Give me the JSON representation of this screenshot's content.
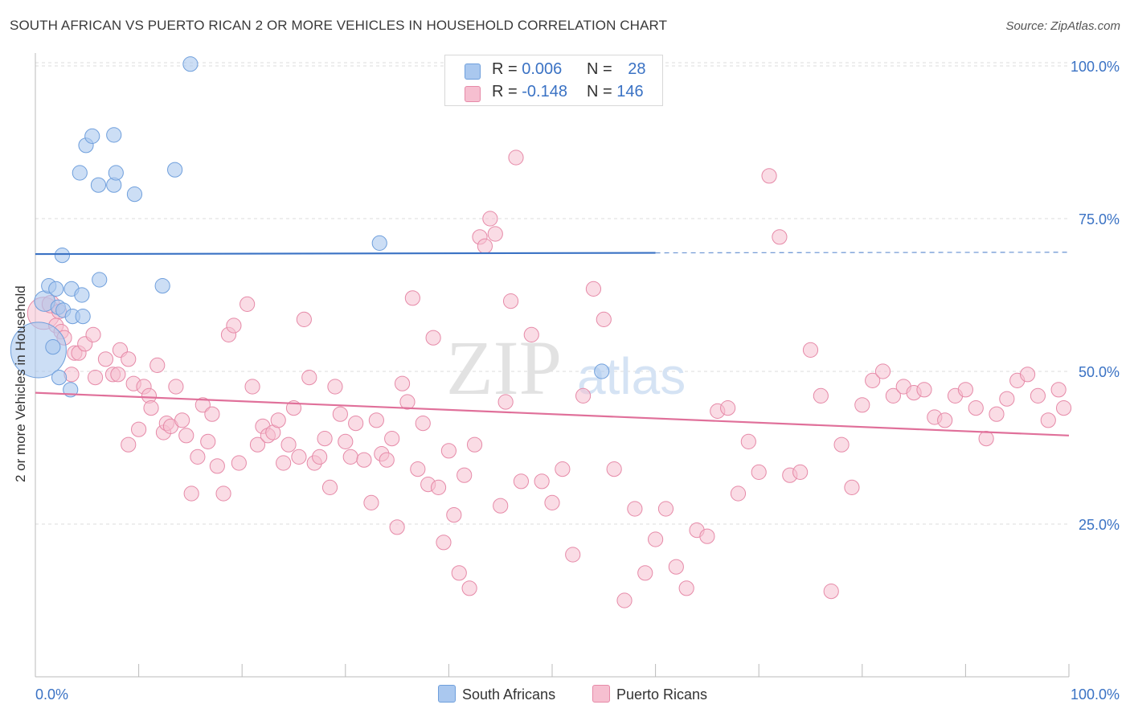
{
  "header": {
    "title": "SOUTH AFRICAN VS PUERTO RICAN 2 OR MORE VEHICLES IN HOUSEHOLD CORRELATION CHART",
    "source": "Source: ZipAtlas.com"
  },
  "legend_top": {
    "rows": [
      {
        "r_label": "R = ",
        "r_value": "0.006",
        "n_label": "N = ",
        "n_value": "28"
      },
      {
        "r_label": "R = ",
        "r_value": "-0.148",
        "n_label": "N = ",
        "n_value": "146"
      }
    ]
  },
  "legend_bottom": {
    "items": [
      {
        "label": "South Africans"
      },
      {
        "label": "Puerto Ricans"
      }
    ]
  },
  "watermark": {
    "zip": "ZIP",
    "atlas": "atlas"
  },
  "colors": {
    "blue_fill": "#aac8ef",
    "blue_stroke": "#6f9fdc",
    "blue_line": "#3a72c4",
    "pink_fill": "#f6bfd0",
    "pink_stroke": "#e68aa8",
    "pink_line": "#e0709a",
    "axis_text": "#3a72c4",
    "grid": "#dddddd"
  },
  "chart_data": {
    "type": "scatter",
    "ylabel": "2 or more Vehicles in Household",
    "xlim": [
      0,
      100
    ],
    "ylim": [
      3,
      105
    ],
    "x_tick_labels": [
      "0.0%",
      "100.0%"
    ],
    "y_ticks": [
      {
        "value": 25,
        "label": "25.0%"
      },
      {
        "value": 50,
        "label": "50.0%"
      },
      {
        "value": 75,
        "label": "75.0%"
      },
      {
        "value": 100,
        "label": "100.0%"
      }
    ],
    "series": [
      {
        "name": "South Africans",
        "R": 0.006,
        "N": 28,
        "trend": {
          "x0": 0,
          "y0": 69.2,
          "x1": 60,
          "y1": 69.4,
          "x_dash_end": 100,
          "y_dash_end": 69.5
        },
        "points": [
          [
            0.3,
            53.5,
            38
          ],
          [
            0.9,
            61.5,
            14
          ],
          [
            1.3,
            64.0,
            10
          ],
          [
            1.7,
            54.0,
            10
          ],
          [
            2.0,
            63.5,
            10
          ],
          [
            2.2,
            60.5,
            10
          ],
          [
            2.6,
            69.0,
            10
          ],
          [
            2.3,
            49.0,
            10
          ],
          [
            2.7,
            60.0,
            10
          ],
          [
            3.5,
            63.5,
            10
          ],
          [
            3.6,
            59.0,
            10
          ],
          [
            3.4,
            47.0,
            10
          ],
          [
            4.6,
            59.0,
            10
          ],
          [
            4.5,
            62.5,
            10
          ],
          [
            4.3,
            82.5,
            10
          ],
          [
            4.9,
            87.0,
            10
          ],
          [
            5.5,
            88.5,
            10
          ],
          [
            6.1,
            80.5,
            10
          ],
          [
            6.2,
            65.0,
            10
          ],
          [
            7.6,
            88.7,
            10
          ],
          [
            7.6,
            80.5,
            10
          ],
          [
            7.8,
            82.5,
            10
          ],
          [
            9.6,
            79.0,
            10
          ],
          [
            12.3,
            64.0,
            10
          ],
          [
            13.5,
            83.0,
            10
          ],
          [
            15.0,
            100.3,
            10
          ],
          [
            33.3,
            71.0,
            10
          ],
          [
            54.8,
            50.0,
            10
          ]
        ]
      },
      {
        "name": "Puerto Ricans",
        "R": -0.148,
        "N": 146,
        "trend": {
          "x0": 0,
          "y0": 46.5,
          "x1": 100,
          "y1": 39.5
        },
        "points": [
          [
            0.8,
            59.5,
            22
          ],
          [
            1.5,
            61.0,
            12
          ],
          [
            2.0,
            57.5,
            10
          ],
          [
            2.3,
            59.8,
            10
          ],
          [
            2.5,
            56.5,
            10
          ],
          [
            2.8,
            55.5,
            10
          ],
          [
            3.5,
            49.5,
            10
          ],
          [
            3.8,
            53.0,
            10
          ],
          [
            4.2,
            53.0,
            10
          ],
          [
            4.8,
            54.5,
            10
          ],
          [
            5.6,
            56.0,
            10
          ],
          [
            5.8,
            49.0,
            10
          ],
          [
            6.8,
            52.0,
            10
          ],
          [
            7.5,
            49.5,
            10
          ],
          [
            8.0,
            49.5,
            10
          ],
          [
            8.2,
            53.5,
            10
          ],
          [
            9.0,
            52.0,
            10
          ],
          [
            9.0,
            38.0,
            10
          ],
          [
            9.5,
            48.0,
            10
          ],
          [
            10.0,
            40.5,
            10
          ],
          [
            10.5,
            47.5,
            10
          ],
          [
            11.0,
            46.0,
            10
          ],
          [
            11.2,
            44.0,
            10
          ],
          [
            11.8,
            51.0,
            10
          ],
          [
            12.4,
            40.0,
            10
          ],
          [
            12.7,
            41.5,
            10
          ],
          [
            13.1,
            41.0,
            10
          ],
          [
            13.6,
            47.5,
            10
          ],
          [
            14.2,
            42.0,
            10
          ],
          [
            14.6,
            39.5,
            10
          ],
          [
            15.1,
            30.0,
            10
          ],
          [
            15.7,
            36.0,
            10
          ],
          [
            16.2,
            44.5,
            10
          ],
          [
            16.7,
            38.5,
            10
          ],
          [
            17.1,
            43.0,
            10
          ],
          [
            17.6,
            34.5,
            10
          ],
          [
            18.2,
            30.0,
            10
          ],
          [
            18.7,
            56.0,
            10
          ],
          [
            19.2,
            57.5,
            10
          ],
          [
            19.7,
            35.0,
            10
          ],
          [
            20.5,
            61.0,
            10
          ],
          [
            21.0,
            47.5,
            10
          ],
          [
            21.5,
            38.0,
            10
          ],
          [
            22.0,
            41.0,
            10
          ],
          [
            22.5,
            39.5,
            10
          ],
          [
            23.0,
            40.0,
            10
          ],
          [
            23.5,
            42.0,
            10
          ],
          [
            24.0,
            35.0,
            10
          ],
          [
            24.5,
            38.0,
            10
          ],
          [
            25.0,
            44.0,
            10
          ],
          [
            25.5,
            36.0,
            10
          ],
          [
            26.0,
            58.5,
            10
          ],
          [
            26.5,
            49.0,
            10
          ],
          [
            27.0,
            35.0,
            10
          ],
          [
            27.5,
            36.0,
            10
          ],
          [
            28.0,
            39.0,
            10
          ],
          [
            28.5,
            31.0,
            10
          ],
          [
            29.0,
            47.5,
            10
          ],
          [
            29.5,
            43.0,
            10
          ],
          [
            30.0,
            38.5,
            10
          ],
          [
            30.5,
            36.0,
            10
          ],
          [
            31.0,
            41.5,
            10
          ],
          [
            31.8,
            35.5,
            10
          ],
          [
            32.5,
            28.5,
            10
          ],
          [
            33.0,
            42.0,
            10
          ],
          [
            33.5,
            36.5,
            10
          ],
          [
            34.0,
            35.5,
            10
          ],
          [
            34.5,
            39.0,
            10
          ],
          [
            35.0,
            24.5,
            10
          ],
          [
            35.5,
            48.0,
            10
          ],
          [
            36.0,
            45.0,
            10
          ],
          [
            36.5,
            62.0,
            10
          ],
          [
            37.0,
            34.0,
            10
          ],
          [
            37.5,
            41.5,
            10
          ],
          [
            38.0,
            31.5,
            10
          ],
          [
            38.5,
            55.5,
            10
          ],
          [
            39.0,
            31.0,
            10
          ],
          [
            39.5,
            22.0,
            10
          ],
          [
            40.0,
            37.0,
            10
          ],
          [
            40.5,
            26.5,
            10
          ],
          [
            41.0,
            17.0,
            10
          ],
          [
            41.5,
            33.0,
            10
          ],
          [
            42.0,
            14.5,
            10
          ],
          [
            42.5,
            38.0,
            10
          ],
          [
            43.0,
            72.0,
            10
          ],
          [
            43.5,
            70.5,
            10
          ],
          [
            44.0,
            75.0,
            10
          ],
          [
            44.5,
            72.5,
            10
          ],
          [
            45.0,
            28.0,
            10
          ],
          [
            45.5,
            45.0,
            10
          ],
          [
            46.0,
            61.5,
            10
          ],
          [
            46.5,
            85.0,
            10
          ],
          [
            47.0,
            32.0,
            10
          ],
          [
            48.0,
            56.0,
            10
          ],
          [
            49.0,
            32.0,
            10
          ],
          [
            50.0,
            28.5,
            10
          ],
          [
            51.0,
            34.0,
            10
          ],
          [
            52.0,
            20.0,
            10
          ],
          [
            53.0,
            46.0,
            10
          ],
          [
            54.0,
            63.5,
            10
          ],
          [
            55.0,
            58.5,
            10
          ],
          [
            56.0,
            34.0,
            10
          ],
          [
            57.0,
            12.5,
            10
          ],
          [
            58.0,
            27.5,
            10
          ],
          [
            59.0,
            17.0,
            10
          ],
          [
            60.0,
            22.5,
            10
          ],
          [
            61.0,
            27.5,
            10
          ],
          [
            62.0,
            18.0,
            10
          ],
          [
            63.0,
            14.5,
            10
          ],
          [
            64.0,
            24.0,
            10
          ],
          [
            65.0,
            23.0,
            10
          ],
          [
            66.0,
            43.5,
            10
          ],
          [
            67.0,
            44.0,
            10
          ],
          [
            68.0,
            30.0,
            10
          ],
          [
            69.0,
            38.5,
            10
          ],
          [
            70.0,
            33.5,
            10
          ],
          [
            71.0,
            82.0,
            10
          ],
          [
            72.0,
            72.0,
            10
          ],
          [
            73.0,
            33.0,
            10
          ],
          [
            74.0,
            33.5,
            10
          ],
          [
            75.0,
            53.5,
            10
          ],
          [
            76.0,
            46.0,
            10
          ],
          [
            77.0,
            14.0,
            10
          ],
          [
            78.0,
            38.0,
            10
          ],
          [
            79.0,
            31.0,
            10
          ],
          [
            80.0,
            44.5,
            10
          ],
          [
            81.0,
            48.5,
            10
          ],
          [
            82.0,
            50.0,
            10
          ],
          [
            83.0,
            46.0,
            10
          ],
          [
            84.0,
            47.5,
            10
          ],
          [
            85.0,
            46.5,
            10
          ],
          [
            86.0,
            47.0,
            10
          ],
          [
            87.0,
            42.5,
            10
          ],
          [
            88.0,
            42.0,
            10
          ],
          [
            89.0,
            46.0,
            10
          ],
          [
            90.0,
            47.0,
            10
          ],
          [
            91.0,
            44.0,
            10
          ],
          [
            92.0,
            39.0,
            10
          ],
          [
            93.0,
            43.0,
            10
          ],
          [
            94.0,
            45.5,
            10
          ],
          [
            95.0,
            48.5,
            10
          ],
          [
            96.0,
            49.5,
            10
          ],
          [
            97.0,
            46.0,
            10
          ],
          [
            98.0,
            42.0,
            10
          ],
          [
            99.0,
            47.0,
            10
          ],
          [
            99.5,
            44.0,
            10
          ]
        ]
      }
    ]
  }
}
